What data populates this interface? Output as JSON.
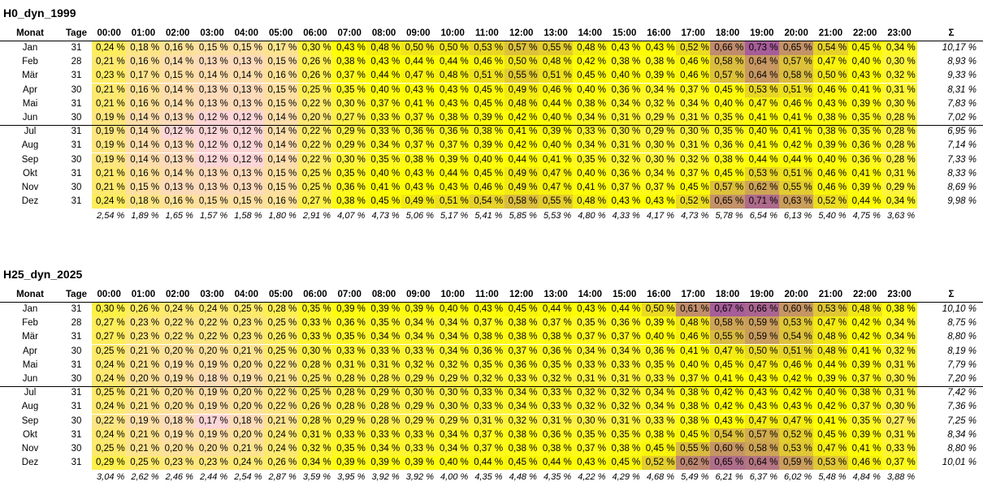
{
  "tables": [
    {
      "title": "H0_dyn_1999",
      "headers": {
        "month": "Monat",
        "days": "Tage",
        "sum": "Σ",
        "hours": [
          "00:00",
          "01:00",
          "02:00",
          "03:00",
          "04:00",
          "05:00",
          "06:00",
          "07:00",
          "08:00",
          "09:00",
          "10:00",
          "11:00",
          "12:00",
          "13:00",
          "14:00",
          "15:00",
          "16:00",
          "17:00",
          "18:00",
          "19:00",
          "20:00",
          "21:00",
          "22:00",
          "23:00"
        ]
      },
      "rows": [
        {
          "month": "Jan",
          "days": "31",
          "values": [
            0.24,
            0.18,
            0.16,
            0.15,
            0.15,
            0.17,
            0.3,
            0.43,
            0.48,
            0.5,
            0.5,
            0.53,
            0.57,
            0.55,
            0.48,
            0.43,
            0.43,
            0.52,
            0.66,
            0.73,
            0.65,
            0.54,
            0.45,
            0.34
          ],
          "sum": "10,17 %"
        },
        {
          "month": "Feb",
          "days": "28",
          "values": [
            0.21,
            0.16,
            0.14,
            0.13,
            0.13,
            0.15,
            0.26,
            0.38,
            0.43,
            0.44,
            0.44,
            0.46,
            0.5,
            0.48,
            0.42,
            0.38,
            0.38,
            0.46,
            0.58,
            0.64,
            0.57,
            0.47,
            0.4,
            0.3
          ],
          "sum": "8,93 %"
        },
        {
          "month": "Mär",
          "days": "31",
          "values": [
            0.23,
            0.17,
            0.15,
            0.14,
            0.14,
            0.16,
            0.26,
            0.37,
            0.44,
            0.47,
            0.48,
            0.51,
            0.55,
            0.51,
            0.45,
            0.4,
            0.39,
            0.46,
            0.57,
            0.64,
            0.58,
            0.5,
            0.43,
            0.32
          ],
          "sum": "9,33 %"
        },
        {
          "month": "Apr",
          "days": "30",
          "values": [
            0.21,
            0.16,
            0.14,
            0.13,
            0.13,
            0.15,
            0.25,
            0.35,
            0.4,
            0.43,
            0.43,
            0.45,
            0.49,
            0.46,
            0.4,
            0.36,
            0.34,
            0.37,
            0.45,
            0.53,
            0.51,
            0.46,
            0.41,
            0.31
          ],
          "sum": "8,31 %"
        },
        {
          "month": "Mai",
          "days": "31",
          "values": [
            0.21,
            0.16,
            0.14,
            0.13,
            0.13,
            0.15,
            0.22,
            0.3,
            0.37,
            0.41,
            0.43,
            0.45,
            0.48,
            0.44,
            0.38,
            0.34,
            0.32,
            0.34,
            0.4,
            0.47,
            0.46,
            0.43,
            0.39,
            0.3
          ],
          "sum": "7,83 %"
        },
        {
          "month": "Jun",
          "days": "30",
          "values": [
            0.19,
            0.14,
            0.13,
            0.12,
            0.12,
            0.14,
            0.2,
            0.27,
            0.33,
            0.37,
            0.38,
            0.39,
            0.42,
            0.4,
            0.34,
            0.31,
            0.29,
            0.31,
            0.35,
            0.41,
            0.41,
            0.38,
            0.35,
            0.28
          ],
          "sum": "7,02 %"
        },
        {
          "month": "Jul",
          "days": "31",
          "values": [
            0.19,
            0.14,
            0.12,
            0.12,
            0.12,
            0.14,
            0.22,
            0.29,
            0.33,
            0.36,
            0.36,
            0.38,
            0.41,
            0.39,
            0.33,
            0.3,
            0.29,
            0.3,
            0.35,
            0.4,
            0.41,
            0.38,
            0.35,
            0.28
          ],
          "sum": "6,95 %"
        },
        {
          "month": "Aug",
          "days": "31",
          "values": [
            0.19,
            0.14,
            0.13,
            0.12,
            0.12,
            0.14,
            0.22,
            0.29,
            0.34,
            0.37,
            0.37,
            0.39,
            0.42,
            0.4,
            0.34,
            0.31,
            0.3,
            0.31,
            0.36,
            0.41,
            0.42,
            0.39,
            0.36,
            0.28
          ],
          "sum": "7,14 %"
        },
        {
          "month": "Sep",
          "days": "30",
          "values": [
            0.19,
            0.14,
            0.13,
            0.12,
            0.12,
            0.14,
            0.22,
            0.3,
            0.35,
            0.38,
            0.39,
            0.4,
            0.44,
            0.41,
            0.35,
            0.32,
            0.3,
            0.32,
            0.38,
            0.44,
            0.44,
            0.4,
            0.36,
            0.28
          ],
          "sum": "7,33 %"
        },
        {
          "month": "Okt",
          "days": "31",
          "values": [
            0.21,
            0.16,
            0.14,
            0.13,
            0.13,
            0.15,
            0.25,
            0.35,
            0.4,
            0.43,
            0.44,
            0.45,
            0.49,
            0.47,
            0.4,
            0.36,
            0.34,
            0.37,
            0.45,
            0.53,
            0.51,
            0.46,
            0.41,
            0.31
          ],
          "sum": "8,33 %"
        },
        {
          "month": "Nov",
          "days": "30",
          "values": [
            0.21,
            0.15,
            0.13,
            0.13,
            0.13,
            0.15,
            0.25,
            0.36,
            0.41,
            0.43,
            0.43,
            0.46,
            0.49,
            0.47,
            0.41,
            0.37,
            0.37,
            0.45,
            0.57,
            0.62,
            0.55,
            0.46,
            0.39,
            0.29
          ],
          "sum": "8,69 %"
        },
        {
          "month": "Dez",
          "days": "31",
          "values": [
            0.24,
            0.18,
            0.16,
            0.15,
            0.15,
            0.16,
            0.27,
            0.38,
            0.45,
            0.49,
            0.51,
            0.54,
            0.58,
            0.55,
            0.48,
            0.43,
            0.43,
            0.52,
            0.65,
            0.71,
            0.63,
            0.52,
            0.44,
            0.34
          ],
          "sum": "9,98 %"
        }
      ],
      "totals": [
        "2,54 %",
        "1,89 %",
        "1,65 %",
        "1,57 %",
        "1,58 %",
        "1,80 %",
        "2,91 %",
        "4,07 %",
        "4,73 %",
        "5,06 %",
        "5,17 %",
        "5,41 %",
        "5,85 %",
        "5,53 %",
        "4,80 %",
        "4,33 %",
        "4,17 %",
        "4,73 %",
        "5,78 %",
        "6,54 %",
        "6,13 %",
        "5,40 %",
        "4,75 %",
        "3,63 %"
      ]
    },
    {
      "title": "H25_dyn_2025",
      "headers": {
        "month": "Monat",
        "days": "Tage",
        "sum": "Σ",
        "hours": [
          "00:00",
          "01:00",
          "02:00",
          "03:00",
          "04:00",
          "05:00",
          "06:00",
          "07:00",
          "08:00",
          "09:00",
          "10:00",
          "11:00",
          "12:00",
          "13:00",
          "14:00",
          "15:00",
          "16:00",
          "17:00",
          "18:00",
          "19:00",
          "20:00",
          "21:00",
          "22:00",
          "23:00"
        ]
      },
      "rows": [
        {
          "month": "Jan",
          "days": "31",
          "values": [
            0.3,
            0.26,
            0.24,
            0.24,
            0.25,
            0.28,
            0.35,
            0.39,
            0.39,
            0.39,
            0.4,
            0.43,
            0.45,
            0.44,
            0.43,
            0.44,
            0.5,
            0.61,
            0.67,
            0.66,
            0.6,
            0.53,
            0.48,
            0.38
          ],
          "sum": "10,10 %"
        },
        {
          "month": "Feb",
          "days": "28",
          "values": [
            0.27,
            0.23,
            0.22,
            0.22,
            0.23,
            0.25,
            0.33,
            0.36,
            0.35,
            0.34,
            0.34,
            0.37,
            0.38,
            0.37,
            0.35,
            0.36,
            0.39,
            0.48,
            0.58,
            0.59,
            0.53,
            0.47,
            0.42,
            0.34
          ],
          "sum": "8,75 %"
        },
        {
          "month": "Mär",
          "days": "31",
          "values": [
            0.27,
            0.23,
            0.22,
            0.22,
            0.23,
            0.26,
            0.33,
            0.35,
            0.34,
            0.34,
            0.34,
            0.38,
            0.38,
            0.38,
            0.37,
            0.37,
            0.4,
            0.46,
            0.55,
            0.59,
            0.54,
            0.48,
            0.42,
            0.34
          ],
          "sum": "8,80 %"
        },
        {
          "month": "Apr",
          "days": "30",
          "values": [
            0.25,
            0.21,
            0.2,
            0.2,
            0.21,
            0.25,
            0.3,
            0.33,
            0.33,
            0.33,
            0.34,
            0.36,
            0.37,
            0.36,
            0.34,
            0.34,
            0.36,
            0.41,
            0.47,
            0.5,
            0.51,
            0.48,
            0.41,
            0.32
          ],
          "sum": "8,19 %"
        },
        {
          "month": "Mai",
          "days": "31",
          "values": [
            0.24,
            0.21,
            0.19,
            0.19,
            0.2,
            0.22,
            0.28,
            0.31,
            0.31,
            0.32,
            0.32,
            0.35,
            0.36,
            0.35,
            0.33,
            0.33,
            0.35,
            0.4,
            0.45,
            0.47,
            0.46,
            0.44,
            0.39,
            0.31
          ],
          "sum": "7,79 %"
        },
        {
          "month": "Jun",
          "days": "30",
          "values": [
            0.24,
            0.2,
            0.19,
            0.18,
            0.19,
            0.21,
            0.25,
            0.28,
            0.28,
            0.29,
            0.29,
            0.32,
            0.33,
            0.32,
            0.31,
            0.31,
            0.33,
            0.37,
            0.41,
            0.43,
            0.42,
            0.39,
            0.37,
            0.3
          ],
          "sum": "7,20 %"
        },
        {
          "month": "Jul",
          "days": "31",
          "values": [
            0.25,
            0.21,
            0.2,
            0.19,
            0.2,
            0.22,
            0.25,
            0.28,
            0.29,
            0.3,
            0.3,
            0.33,
            0.34,
            0.33,
            0.32,
            0.32,
            0.34,
            0.38,
            0.42,
            0.43,
            0.42,
            0.4,
            0.38,
            0.31
          ],
          "sum": "7,42 %"
        },
        {
          "month": "Aug",
          "days": "31",
          "values": [
            0.24,
            0.21,
            0.2,
            0.19,
            0.2,
            0.22,
            0.26,
            0.28,
            0.28,
            0.29,
            0.3,
            0.33,
            0.34,
            0.33,
            0.32,
            0.32,
            0.34,
            0.38,
            0.42,
            0.43,
            0.43,
            0.42,
            0.37,
            0.3
          ],
          "sum": "7,36 %"
        },
        {
          "month": "Sep",
          "days": "30",
          "values": [
            0.22,
            0.19,
            0.18,
            0.17,
            0.18,
            0.21,
            0.28,
            0.29,
            0.28,
            0.29,
            0.29,
            0.31,
            0.32,
            0.31,
            0.3,
            0.31,
            0.33,
            0.38,
            0.43,
            0.47,
            0.47,
            0.41,
            0.35,
            0.27
          ],
          "sum": "7,25 %"
        },
        {
          "month": "Okt",
          "days": "31",
          "values": [
            0.24,
            0.21,
            0.19,
            0.19,
            0.2,
            0.24,
            0.31,
            0.33,
            0.33,
            0.33,
            0.34,
            0.37,
            0.38,
            0.36,
            0.35,
            0.35,
            0.38,
            0.45,
            0.54,
            0.57,
            0.52,
            0.45,
            0.39,
            0.31
          ],
          "sum": "8,34 %"
        },
        {
          "month": "Nov",
          "days": "30",
          "values": [
            0.25,
            0.21,
            0.2,
            0.2,
            0.21,
            0.24,
            0.32,
            0.35,
            0.34,
            0.33,
            0.34,
            0.37,
            0.38,
            0.38,
            0.37,
            0.38,
            0.45,
            0.55,
            0.6,
            0.58,
            0.53,
            0.47,
            0.41,
            0.33
          ],
          "sum": "8,80 %"
        },
        {
          "month": "Dez",
          "days": "31",
          "values": [
            0.29,
            0.25,
            0.23,
            0.23,
            0.24,
            0.26,
            0.34,
            0.39,
            0.39,
            0.39,
            0.4,
            0.44,
            0.45,
            0.44,
            0.43,
            0.45,
            0.52,
            0.62,
            0.65,
            0.64,
            0.59,
            0.53,
            0.46,
            0.37
          ],
          "sum": "10,01 %"
        }
      ],
      "totals": [
        "3,04 %",
        "2,62 %",
        "2,46 %",
        "2,44 %",
        "2,54 %",
        "2,87 %",
        "3,59 %",
        "3,95 %",
        "3,92 %",
        "3,92 %",
        "4,00 %",
        "4,35 %",
        "4,48 %",
        "4,35 %",
        "4,22 %",
        "4,29 %",
        "4,68 %",
        "5,49 %",
        "6,21 %",
        "6,37 %",
        "6,02 %",
        "5,48 %",
        "4,84 %",
        "3,88 %"
      ]
    }
  ],
  "colors": {
    "low": "#fcd5d6",
    "mid": "#ffff00",
    "high": "#a65d99"
  }
}
